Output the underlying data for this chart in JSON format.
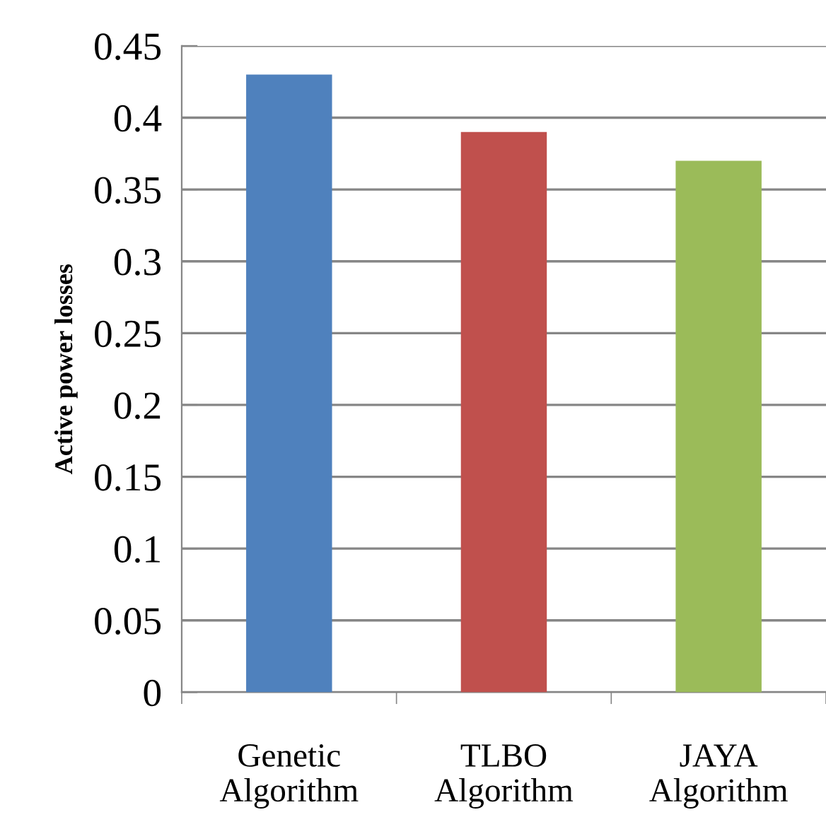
{
  "chart_data": {
    "type": "bar",
    "ylabel": "Active power losses",
    "categories": [
      "Genetic\nAlgorithm",
      "TLBO\nAlgorithm",
      "JAYA\nAlgorithm"
    ],
    "values": [
      0.43,
      0.39,
      0.37
    ],
    "colors": [
      "#4f81bd",
      "#c0504d",
      "#9bbb59"
    ],
    "ylim": [
      0,
      0.45
    ],
    "yticks": [
      0,
      0.05,
      0.1,
      0.15,
      0.2,
      0.25,
      0.3,
      0.35,
      0.4,
      0.45
    ],
    "grid": "y"
  }
}
